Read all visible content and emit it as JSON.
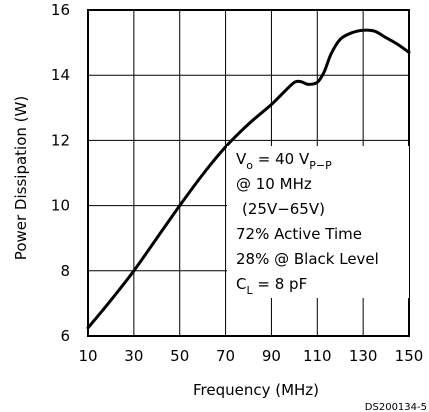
{
  "chart_data": {
    "type": "line",
    "title": "",
    "xlabel": "Frequency (MHz)",
    "ylabel": "Power Dissipation (W)",
    "xlim": [
      10,
      150
    ],
    "ylim": [
      6,
      16
    ],
    "x_ticks": [
      "10",
      "30",
      "50",
      "70",
      "90",
      "110",
      "130",
      "150"
    ],
    "y_ticks": [
      "6",
      "8",
      "10",
      "12",
      "14",
      "16"
    ],
    "grid": true,
    "series": [
      {
        "x": [
          10,
          20,
          30,
          40,
          50,
          60,
          70,
          80,
          90,
          95,
          100,
          103,
          106,
          110,
          113,
          116,
          120,
          125,
          130,
          135,
          140,
          145,
          150
        ],
        "y": [
          6.25,
          7.1,
          8.0,
          9.0,
          10.0,
          10.95,
          11.8,
          12.5,
          13.1,
          13.45,
          13.78,
          13.8,
          13.72,
          13.78,
          14.1,
          14.65,
          15.1,
          15.3,
          15.38,
          15.35,
          15.15,
          14.95,
          14.7
        ]
      }
    ],
    "annotation": {
      "vo_sym": "V",
      "vo_sub": "o",
      "vo_eq": " = 40 V",
      "vo_unit_sub": "P−P",
      "line2": "@ 10 MHz",
      "line3": "(25V−65V)",
      "line4": "72% Active Time",
      "line5": "28% @ Black Level",
      "cl_sym": "C",
      "cl_sub": "L",
      "cl_eq": " = 8 pF"
    },
    "figure_id": "DS200134-5",
    "line_color": "#000000",
    "grid_color": "#000000"
  }
}
